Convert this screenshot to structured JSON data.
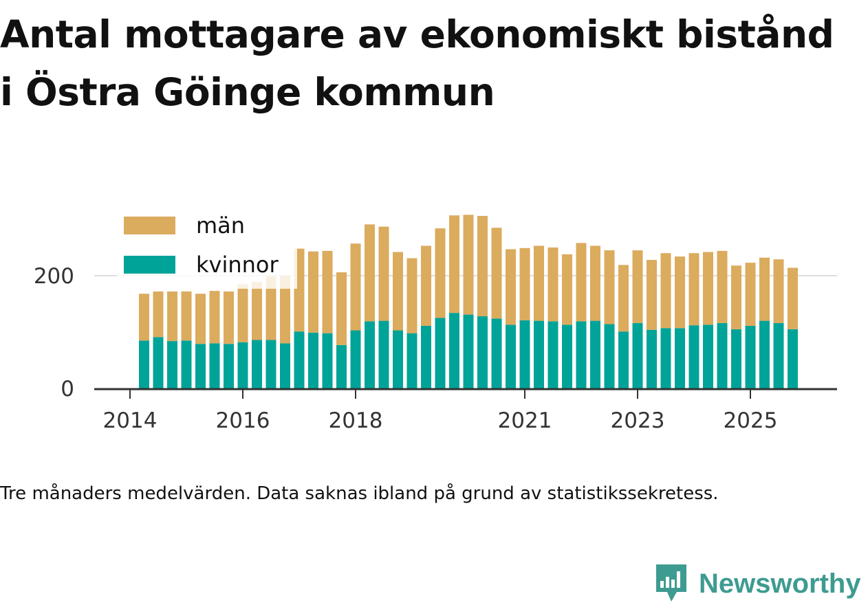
{
  "title_line1": "Antal mottagare av ekonomiskt bistånd",
  "title_line2": "i Östra Göinge kommun",
  "note": "Tre månaders medelvärden. Data saknas ibland på grund av statistikssekretess.",
  "brand": "Newsworthy",
  "colors": {
    "men": "#dbab5e",
    "women": "#00a398",
    "grid": "#dddddd",
    "axis": "#333333"
  },
  "chart_data": {
    "type": "bar",
    "stacked": true,
    "title": "Antal mottagare av ekonomiskt bistånd i Östra Göinge kommun",
    "x_start": 2014.25,
    "x_step": 0.25,
    "xlim": [
      2013.55,
      2026.55
    ],
    "ylim": [
      0,
      340
    ],
    "yticks": [
      0,
      200
    ],
    "xticks": [
      "2014",
      "2016",
      "2018",
      "2021",
      "2023",
      "2025"
    ],
    "legend_position": "top-left",
    "series": [
      {
        "name": "kvinnor",
        "color": "#00a398",
        "values": [
          85,
          91,
          84,
          85,
          79,
          80,
          79,
          82,
          86,
          86,
          80,
          101,
          99,
          98,
          77,
          103,
          119,
          120,
          103,
          98,
          111,
          125,
          134,
          131,
          128,
          124,
          113,
          121,
          120,
          119,
          113,
          119,
          120,
          114,
          101,
          116,
          104,
          107,
          107,
          112,
          113,
          116,
          105,
          111,
          120,
          116,
          105
        ]
      },
      {
        "name": "män",
        "color": "#dbab5e",
        "values": [
          83,
          81,
          88,
          87,
          89,
          93,
          93,
          103,
          103,
          113,
          120,
          147,
          144,
          146,
          129,
          154,
          172,
          167,
          139,
          133,
          142,
          159,
          173,
          177,
          178,
          161,
          134,
          128,
          133,
          131,
          125,
          139,
          133,
          131,
          118,
          129,
          124,
          133,
          127,
          128,
          129,
          128,
          113,
          112,
          112,
          113,
          109
        ]
      }
    ]
  }
}
